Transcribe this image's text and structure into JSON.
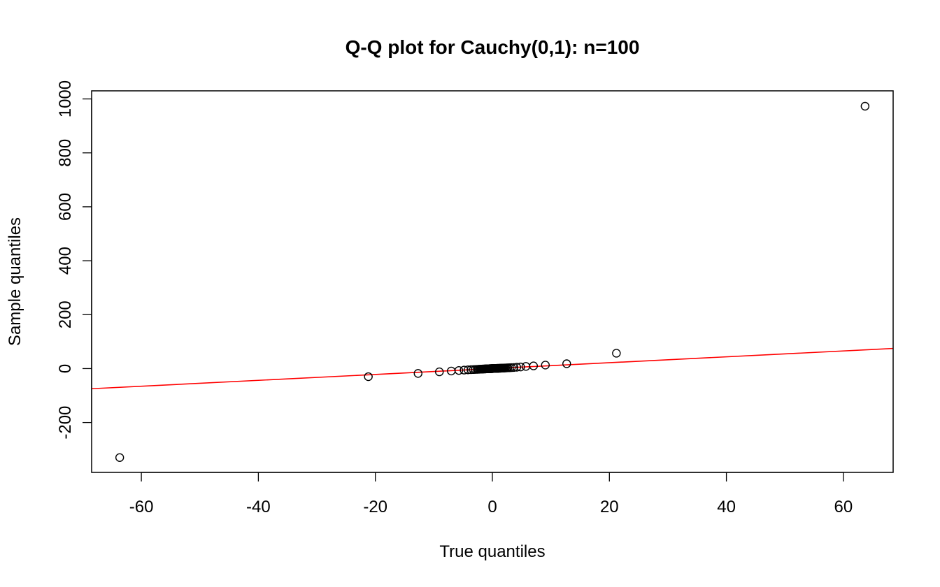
{
  "chart_data": {
    "type": "scatter",
    "title": "Q-Q plot for Cauchy(0,1): n=100",
    "xlabel": "True quantiles",
    "ylabel": "Sample quantiles",
    "xlim": [
      -68.5,
      68.5
    ],
    "ylim": [
      -385,
      1030
    ],
    "xticks": [
      -60,
      -40,
      -20,
      0,
      20,
      40,
      60
    ],
    "xtick_labels": [
      "-60",
      "-40",
      "-20",
      "0",
      "20",
      "40",
      "60"
    ],
    "yticks": [
      -200,
      0,
      200,
      400,
      600,
      800,
      1000
    ],
    "ytick_labels": [
      "-200",
      "0",
      "200",
      "400",
      "600",
      "800",
      "1000"
    ],
    "grid": false,
    "legend": "none",
    "series": [
      {
        "points": [
          [
            -63.7,
            -330
          ],
          [
            -21.2,
            -30
          ],
          [
            -12.7,
            -18
          ],
          [
            -9.06,
            -12
          ],
          [
            -7.03,
            -9
          ],
          [
            -5.73,
            -7
          ],
          [
            -4.83,
            -5.5
          ],
          [
            -4.17,
            -4.7
          ],
          [
            -3.66,
            -4
          ],
          [
            -3.25,
            -3.6
          ],
          [
            -2.92,
            -3.2
          ],
          [
            -2.64,
            -2.9
          ],
          [
            -2.41,
            -2.6
          ],
          [
            -2.21,
            -2.4
          ],
          [
            -2.03,
            -2.2
          ],
          [
            -1.88,
            -2
          ],
          [
            -1.73,
            -1.8
          ],
          [
            -1.61,
            -1.6
          ],
          [
            -1.49,
            -1.5
          ],
          [
            -1.38,
            -1.4
          ],
          [
            -1.28,
            -1.3
          ],
          [
            -1.19,
            -1.2
          ],
          [
            -1.11,
            -1.1
          ],
          [
            -1.03,
            -1
          ],
          [
            -0.96,
            -0.95
          ],
          [
            -0.89,
            -0.9
          ],
          [
            -0.82,
            -0.8
          ],
          [
            -0.76,
            -0.75
          ],
          [
            -0.7,
            -0.7
          ],
          [
            -0.64,
            -0.6
          ],
          [
            -0.59,
            -0.55
          ],
          [
            -0.53,
            -0.5
          ],
          [
            -0.48,
            -0.45
          ],
          [
            -0.43,
            -0.4
          ],
          [
            -0.38,
            -0.35
          ],
          [
            -0.33,
            -0.3
          ],
          [
            -0.28,
            -0.25
          ],
          [
            -0.24,
            -0.2
          ],
          [
            -0.19,
            -0.15
          ],
          [
            -0.14,
            -0.1
          ],
          [
            -0.09,
            -0.05
          ],
          [
            -0.05,
            0
          ],
          [
            0,
            0.05
          ],
          [
            0.05,
            0.1
          ],
          [
            0.09,
            0.15
          ],
          [
            0.14,
            0.2
          ],
          [
            0.19,
            0.25
          ],
          [
            0.24,
            0.3
          ],
          [
            0.28,
            0.35
          ],
          [
            0.33,
            0.4
          ],
          [
            0.38,
            0.45
          ],
          [
            0.43,
            0.5
          ],
          [
            0.48,
            0.55
          ],
          [
            0.53,
            0.6
          ],
          [
            0.59,
            0.65
          ],
          [
            0.64,
            0.7
          ],
          [
            0.7,
            0.75
          ],
          [
            0.76,
            0.8
          ],
          [
            0.82,
            0.85
          ],
          [
            0.89,
            0.9
          ],
          [
            0.96,
            1
          ],
          [
            1.03,
            1.05
          ],
          [
            1.11,
            1.1
          ],
          [
            1.19,
            1.2
          ],
          [
            1.28,
            1.3
          ],
          [
            1.38,
            1.4
          ],
          [
            1.49,
            1.5
          ],
          [
            1.61,
            1.6
          ],
          [
            1.73,
            1.8
          ],
          [
            1.88,
            1.9
          ],
          [
            2.03,
            2.1
          ],
          [
            2.21,
            2.3
          ],
          [
            2.41,
            2.5
          ],
          [
            2.64,
            2.8
          ],
          [
            2.92,
            3.1
          ],
          [
            3.25,
            3.5
          ],
          [
            3.66,
            4
          ],
          [
            4.17,
            5
          ],
          [
            4.83,
            6
          ],
          [
            5.73,
            8
          ],
          [
            7.03,
            10
          ],
          [
            9.06,
            13
          ],
          [
            12.7,
            18
          ],
          [
            21.2,
            57
          ],
          [
            63.7,
            973
          ]
        ]
      }
    ],
    "reference_line": {
      "color": "#ff0000",
      "intercept": 0,
      "slope": 1.09
    },
    "point_color": "#000000"
  }
}
